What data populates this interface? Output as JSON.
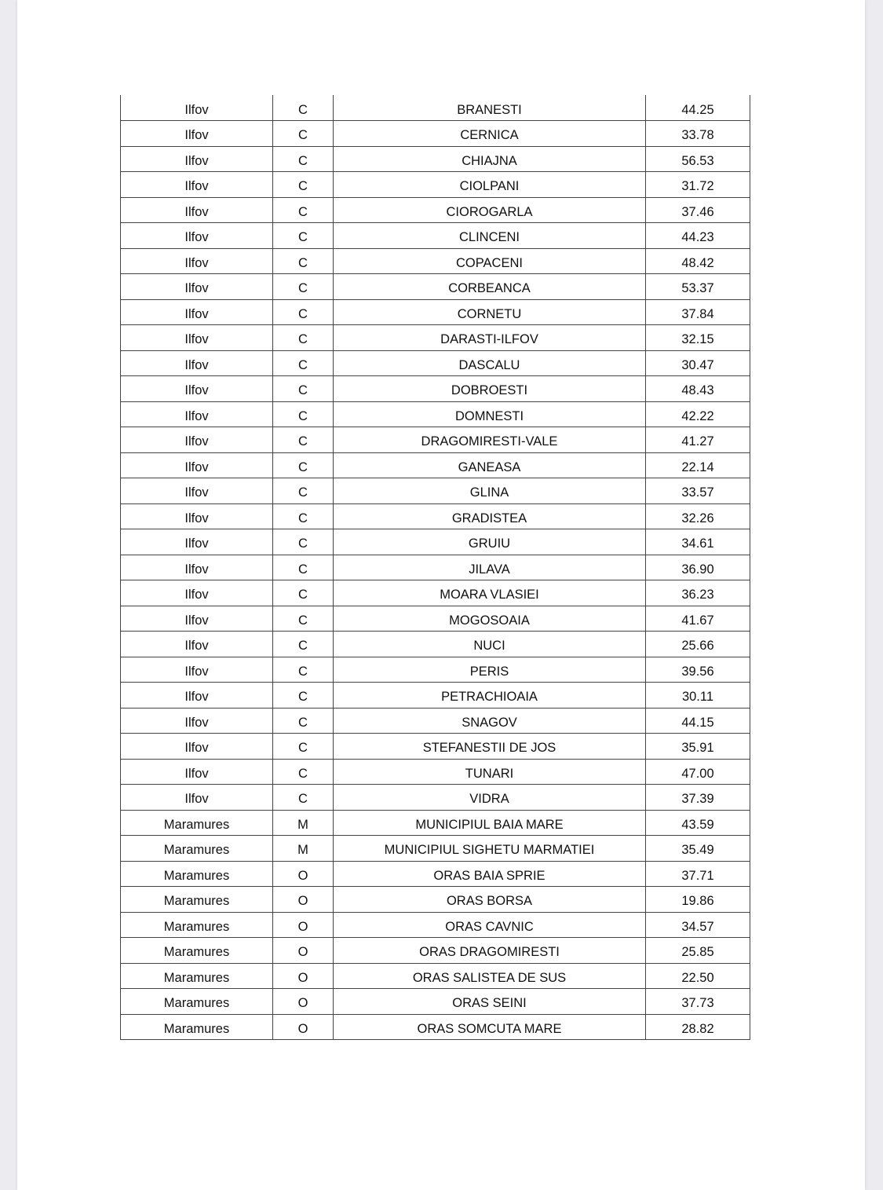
{
  "table": {
    "rows": [
      [
        "Ilfov",
        "C",
        "BRANESTI",
        "44.25"
      ],
      [
        "Ilfov",
        "C",
        "CERNICA",
        "33.78"
      ],
      [
        "Ilfov",
        "C",
        "CHIAJNA",
        "56.53"
      ],
      [
        "Ilfov",
        "C",
        "CIOLPANI",
        "31.72"
      ],
      [
        "Ilfov",
        "C",
        "CIOROGARLA",
        "37.46"
      ],
      [
        "Ilfov",
        "C",
        "CLINCENI",
        "44.23"
      ],
      [
        "Ilfov",
        "C",
        "COPACENI",
        "48.42"
      ],
      [
        "Ilfov",
        "C",
        "CORBEANCA",
        "53.37"
      ],
      [
        "Ilfov",
        "C",
        "CORNETU",
        "37.84"
      ],
      [
        "Ilfov",
        "C",
        "DARASTI-ILFOV",
        "32.15"
      ],
      [
        "Ilfov",
        "C",
        "DASCALU",
        "30.47"
      ],
      [
        "Ilfov",
        "C",
        "DOBROESTI",
        "48.43"
      ],
      [
        "Ilfov",
        "C",
        "DOMNESTI",
        "42.22"
      ],
      [
        "Ilfov",
        "C",
        "DRAGOMIRESTI-VALE",
        "41.27"
      ],
      [
        "Ilfov",
        "C",
        "GANEASA",
        "22.14"
      ],
      [
        "Ilfov",
        "C",
        "GLINA",
        "33.57"
      ],
      [
        "Ilfov",
        "C",
        "GRADISTEA",
        "32.26"
      ],
      [
        "Ilfov",
        "C",
        "GRUIU",
        "34.61"
      ],
      [
        "Ilfov",
        "C",
        "JILAVA",
        "36.90"
      ],
      [
        "Ilfov",
        "C",
        "MOARA VLASIEI",
        "36.23"
      ],
      [
        "Ilfov",
        "C",
        "MOGOSOAIA",
        "41.67"
      ],
      [
        "Ilfov",
        "C",
        "NUCI",
        "25.66"
      ],
      [
        "Ilfov",
        "C",
        "PERIS",
        "39.56"
      ],
      [
        "Ilfov",
        "C",
        "PETRACHIOAIA",
        "30.11"
      ],
      [
        "Ilfov",
        "C",
        "SNAGOV",
        "44.15"
      ],
      [
        "Ilfov",
        "C",
        "STEFANESTII DE JOS",
        "35.91"
      ],
      [
        "Ilfov",
        "C",
        "TUNARI",
        "47.00"
      ],
      [
        "Ilfov",
        "C",
        "VIDRA",
        "37.39"
      ],
      [
        "Maramures",
        "M",
        "MUNICIPIUL BAIA MARE",
        "43.59"
      ],
      [
        "Maramures",
        "M",
        "MUNICIPIUL SIGHETU MARMATIEI",
        "35.49"
      ],
      [
        "Maramures",
        "O",
        "ORAS BAIA SPRIE",
        "37.71"
      ],
      [
        "Maramures",
        "O",
        "ORAS BORSA",
        "19.86"
      ],
      [
        "Maramures",
        "O",
        "ORAS CAVNIC",
        "34.57"
      ],
      [
        "Maramures",
        "O",
        "ORAS DRAGOMIRESTI",
        "25.85"
      ],
      [
        "Maramures",
        "O",
        "ORAS SALISTEA DE SUS",
        "22.50"
      ],
      [
        "Maramures",
        "O",
        "ORAS SEINI",
        "37.73"
      ],
      [
        "Maramures",
        "O",
        "ORAS SOMCUTA MARE",
        "28.82"
      ]
    ]
  }
}
